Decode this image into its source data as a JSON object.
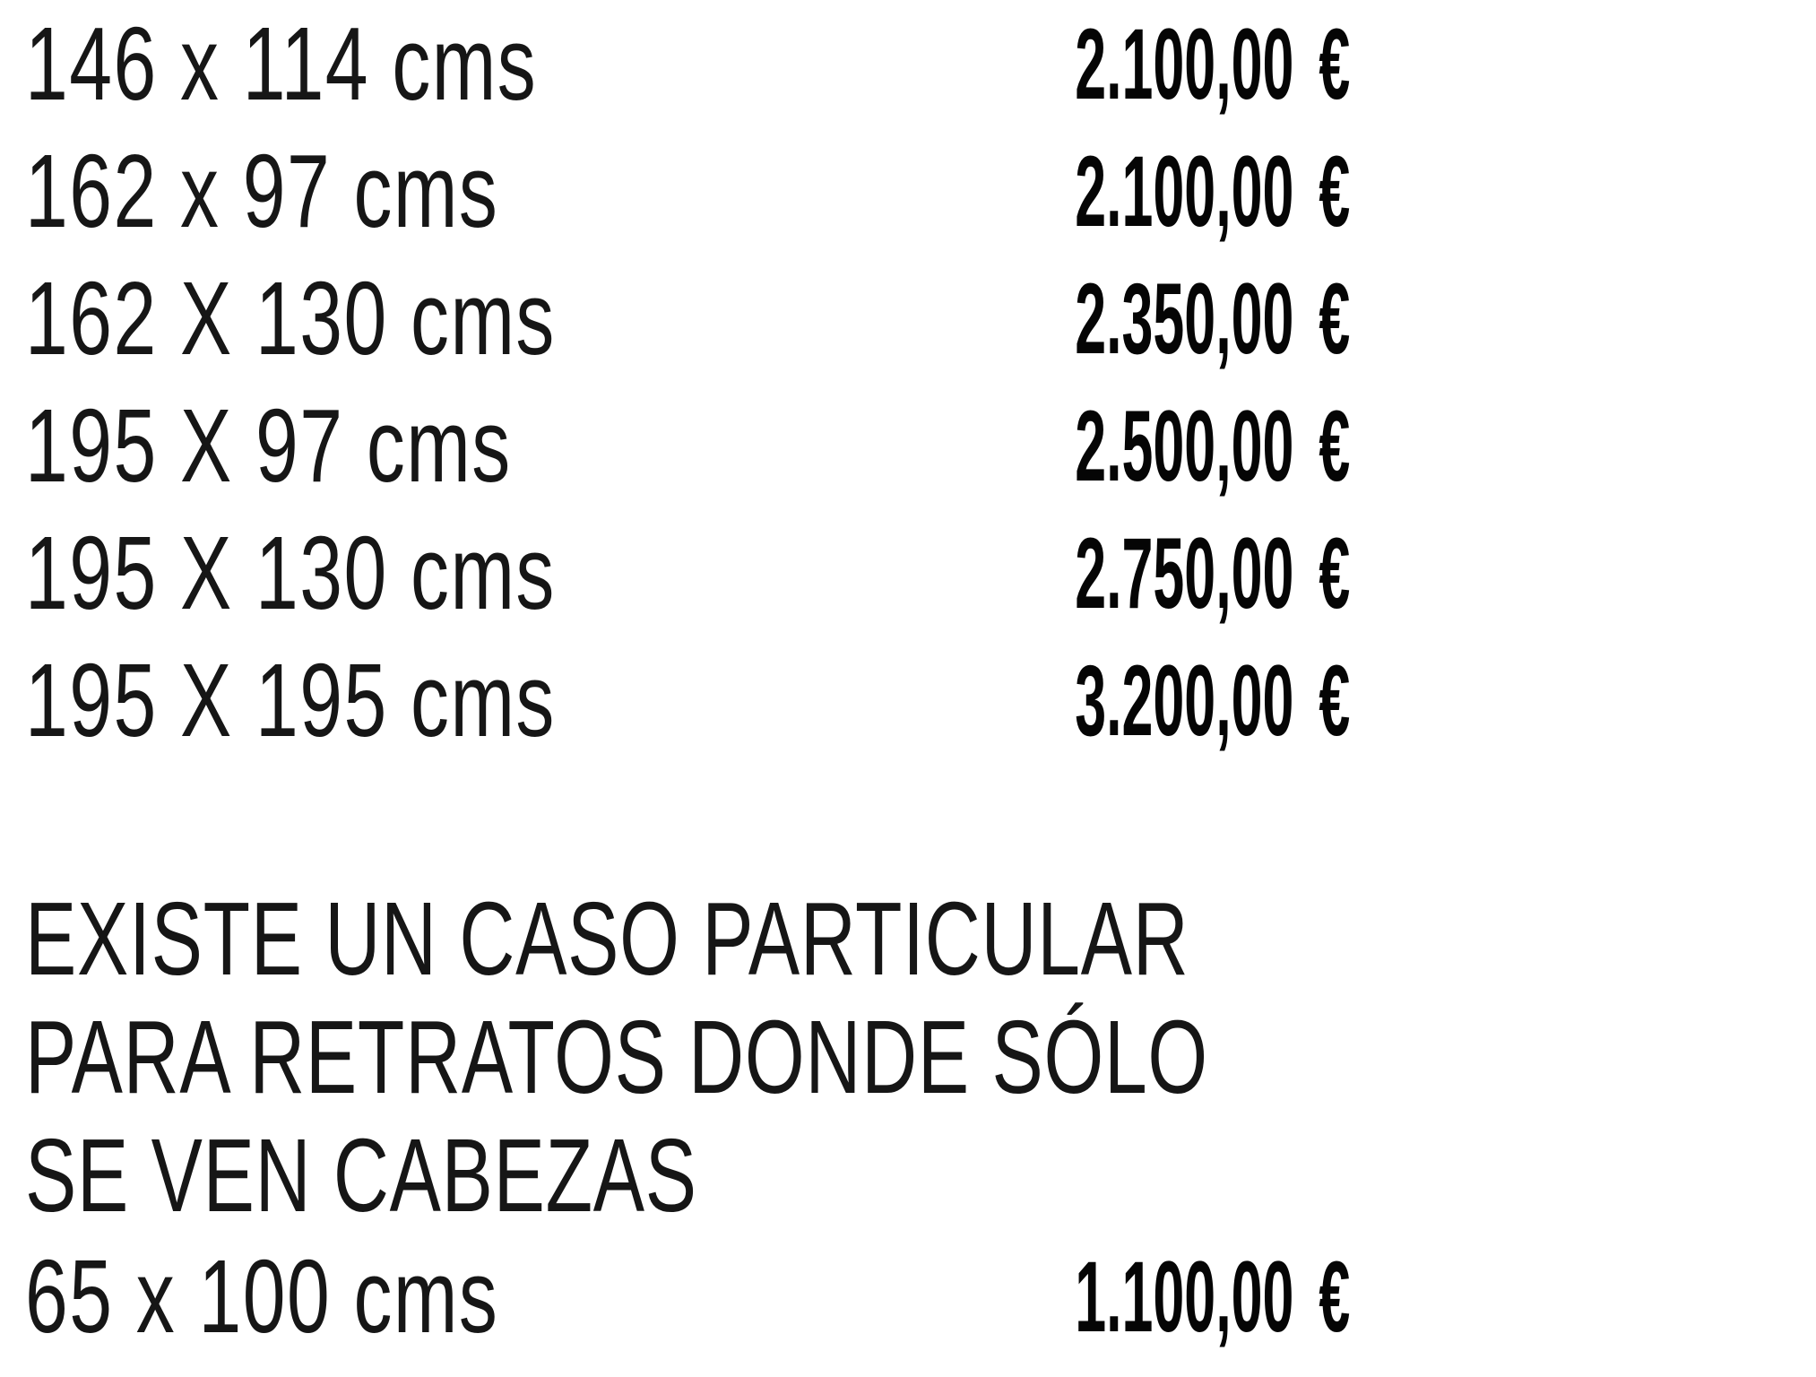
{
  "page": {
    "background_color": "#ffffff",
    "text_color": "#161616",
    "price_color": "#050505"
  },
  "price_table": {
    "rows": [
      {
        "size": "146 x 114 cms",
        "price": "2.100,00",
        "currency": "€"
      },
      {
        "size": "162 x 97 cms",
        "price": "2.100,00",
        "currency": "€"
      },
      {
        "size": "162 X 130 cms",
        "price": "2.350,00",
        "currency": "€"
      },
      {
        "size": "195 X 97 cms",
        "price": "2.500,00",
        "currency": "€"
      },
      {
        "size": "195 X 130 cms",
        "price": "2.750,00",
        "currency": "€"
      },
      {
        "size": "195 X 195 cms",
        "price": "3.200,00",
        "currency": "€"
      }
    ]
  },
  "note": {
    "lines": [
      "EXISTE UN CASO PARTICULAR",
      "PARA RETRATOS DONDE SÓLO",
      "SE VEN CABEZAS"
    ]
  },
  "special_case": {
    "size": "65 x 100 cms",
    "price": "1.100,00",
    "currency": "€"
  }
}
